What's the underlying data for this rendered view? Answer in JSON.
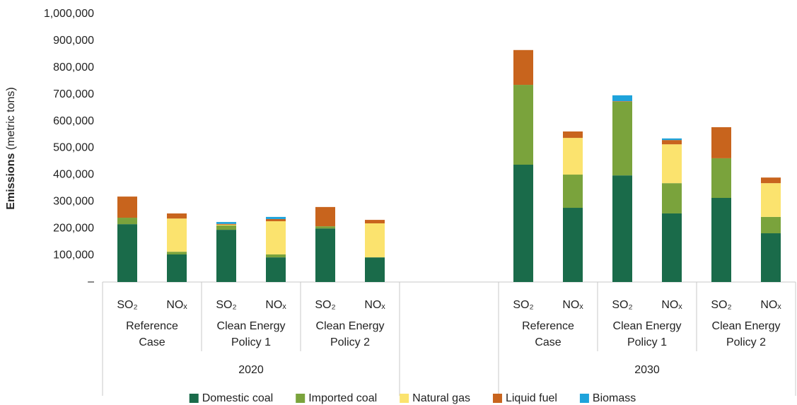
{
  "chart_data": {
    "type": "stacked_bar",
    "ylabel": "Emissions",
    "ylabel_unit": "(metric tons)",
    "categories": [
      "SO₂",
      "NOₓ",
      "SO₂",
      "NOₓ",
      "SO₂",
      "NOₓ",
      null,
      null,
      "SO₂",
      "NOₓ",
      "SO₂",
      "NOₓ",
      "SO₂",
      "NOₓ"
    ],
    "policies": [
      "Reference Case",
      "Clean Energy Policy 1",
      "Clean Energy Policy 2"
    ],
    "years": [
      "2020",
      "2030"
    ],
    "series": [
      {
        "name": "Domestic coal",
        "color": "#1a6b4a",
        "values": [
          216000,
          103000,
          195000,
          92000,
          200000,
          92000,
          null,
          null,
          438000,
          277000,
          398000,
          256000,
          314000,
          182000
        ]
      },
      {
        "name": "Imported coal",
        "color": "#7aa33c",
        "values": [
          24000,
          10000,
          16000,
          11000,
          8000,
          0,
          null,
          null,
          298000,
          124000,
          275000,
          113000,
          148000,
          61000
        ]
      },
      {
        "name": "Natural gas",
        "color": "#fbe36e",
        "values": [
          0,
          124000,
          3000,
          124000,
          0,
          127000,
          null,
          null,
          0,
          137000,
          0,
          145000,
          0,
          126000
        ]
      },
      {
        "name": "Liquid fuel",
        "color": "#c8641d",
        "values": [
          79000,
          19000,
          3000,
          8000,
          72000,
          13000,
          null,
          null,
          130000,
          24000,
          2000,
          16000,
          116000,
          21000
        ]
      },
      {
        "name": "Biomass",
        "color": "#1ea3db",
        "values": [
          0,
          0,
          7000,
          8000,
          0,
          0,
          null,
          null,
          0,
          0,
          22000,
          6000,
          0,
          0
        ]
      }
    ],
    "ylim": [
      0,
      1000000
    ],
    "yticks": [
      {
        "value": 0,
        "label": "–"
      },
      {
        "value": 100000,
        "label": "100,000"
      },
      {
        "value": 200000,
        "label": "200,000"
      },
      {
        "value": 300000,
        "label": "300,000"
      },
      {
        "value": 400000,
        "label": "400,000"
      },
      {
        "value": 500000,
        "label": "500,000"
      },
      {
        "value": 600000,
        "label": "600,000"
      },
      {
        "value": 700000,
        "label": "700,000"
      },
      {
        "value": 800000,
        "label": "800,000"
      },
      {
        "value": 900000,
        "label": "900,000"
      },
      {
        "value": 1000000,
        "label": "1,000,000"
      }
    ],
    "grid": false,
    "legend": "bottom"
  }
}
